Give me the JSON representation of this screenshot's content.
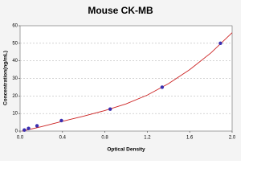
{
  "chart_data": {
    "type": "scatter",
    "title": "Mouse CK-MB",
    "x_label": "Optical Density",
    "y_label": "Concentration(ng/mL)",
    "series": [
      {
        "x": [
          0.04,
          0.08,
          0.16,
          0.39,
          0.85,
          1.34,
          1.89
        ],
        "values": [
          0.6,
          1.5,
          3,
          6,
          12.5,
          25,
          50
        ],
        "color": "#3a2fb0"
      }
    ],
    "fit": {
      "x": [
        0.02,
        0.2,
        0.4,
        0.6,
        0.8,
        1.0,
        1.2,
        1.4,
        1.6,
        1.8,
        2.0
      ],
      "values": [
        0,
        2.5,
        5.6,
        8.5,
        11.7,
        15.5,
        20.5,
        27,
        35,
        44.5,
        56
      ],
      "color": "#cc2222"
    },
    "xlim": [
      0,
      2
    ],
    "ylim": [
      0,
      60
    ],
    "xticks": [
      {
        "value": 0,
        "label": "0.0"
      },
      0.4,
      0.8,
      1.2,
      1.6,
      {
        "value": 2,
        "label": "2.0"
      }
    ],
    "yticks": [
      0,
      10,
      20,
      30,
      40,
      50,
      60
    ],
    "grid": true
  }
}
